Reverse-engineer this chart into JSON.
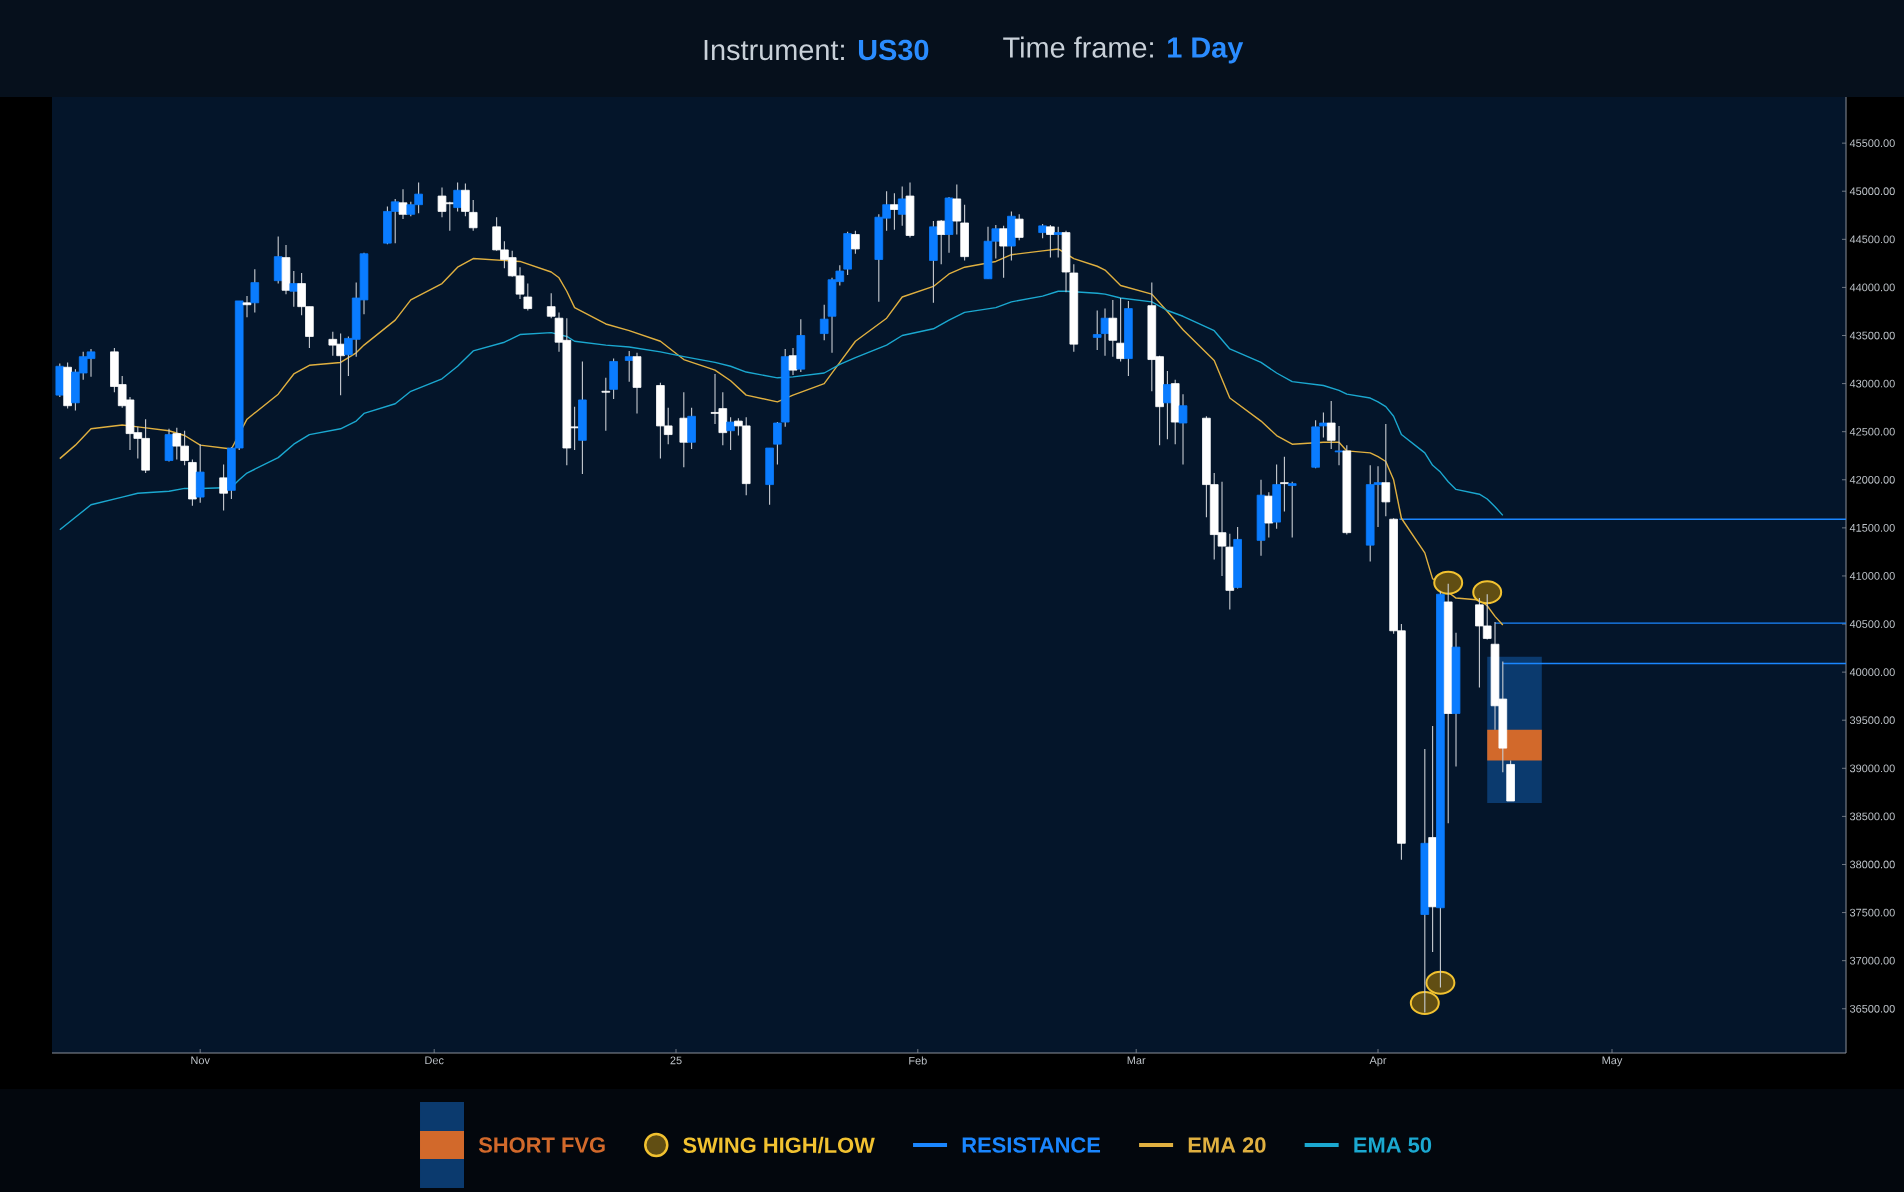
{
  "chart_data": {
    "type": "candlestick",
    "title": "Instrument: **US30**",
    "subtitle": "Time frame: **1 Day**",
    "xlim": [
      "2024-10-13",
      "2025-05-31"
    ],
    "xticks": [
      {
        "value": "2024-11-01",
        "label": "Nov"
      },
      {
        "value": "2024-12-01",
        "label": "Dec"
      },
      {
        "value": "2025-01-01",
        "label": "25"
      },
      {
        "value": "2025-02-01",
        "label": "Feb"
      },
      {
        "value": "2025-03-01",
        "label": "Mar"
      },
      {
        "value": "2025-04-01",
        "label": "Apr"
      },
      {
        "value": "2025-05-01",
        "label": "May"
      }
    ],
    "ylim": [
      36040,
      45980
    ],
    "yticks": [
      {
        "value": 36500,
        "label": "36500.00"
      },
      {
        "value": 37000,
        "label": "37000.00"
      },
      {
        "value": 37500,
        "label": "37500.00"
      },
      {
        "value": 38000,
        "label": "38000.00"
      },
      {
        "value": 38500,
        "label": "38500.00"
      },
      {
        "value": 39000,
        "label": "39000.00"
      },
      {
        "value": 39500,
        "label": "39500.00"
      },
      {
        "value": 40000,
        "label": "40000.00"
      },
      {
        "value": 40500,
        "label": "40500.00"
      },
      {
        "value": 41000,
        "label": "41000.00"
      },
      {
        "value": 41500,
        "label": "41500.00"
      },
      {
        "value": 42000,
        "label": "42000.00"
      },
      {
        "value": 42500,
        "label": "42500.00"
      },
      {
        "value": 43000,
        "label": "43000.00"
      },
      {
        "value": 43500,
        "label": "43500.00"
      },
      {
        "value": 44000,
        "label": "44000.00"
      },
      {
        "value": 44500,
        "label": "44500.00"
      },
      {
        "value": 45000,
        "label": "45000.00"
      },
      {
        "value": 45500,
        "label": "45500.00"
      }
    ],
    "legend": "bottom",
    "series": [
      {
        "type": "bar",
        "color": "#0b3a6e",
        "x": [
          "2025-04-18T12:00"
        ],
        "base": [
          38640
        ],
        "values": [
          1520
        ]
      },
      {
        "type": "bar",
        "name": "SHORT FVG",
        "color": "#d2692b",
        "x": [
          "2025-04-18T12:00"
        ],
        "base": [
          39080
        ],
        "values": [
          320
        ]
      },
      {
        "type": "scatter",
        "name": "SWING HIGH/LOW",
        "color": "#f2c230",
        "marker": "circle",
        "x": [
          "2025-04-07",
          "2025-04-09",
          "2025-04-10",
          "2025-04-15"
        ],
        "values": [
          36560,
          36770,
          40930,
          40830
        ]
      },
      {
        "type": "line",
        "name": "RESISTANCE",
        "color": "#1a86ff",
        "x": [
          "2025-04-03T18:00",
          "2025-05-31"
        ],
        "values": [
          41590,
          41590
        ]
      },
      {
        "type": "line",
        "color": "#1a86ff",
        "x": [
          "2025-04-16",
          "2025-05-31"
        ],
        "values": [
          40510,
          40510
        ]
      },
      {
        "type": "line",
        "color": "#1a86ff",
        "x": [
          "2025-04-17",
          "2025-05-31"
        ],
        "values": [
          40090,
          40090
        ]
      },
      {
        "type": "line",
        "name": "EMA 20",
        "color": "#e0b040",
        "x": [
          "2024-10-14",
          "2024-10-16",
          "2024-10-18",
          "2024-10-22",
          "2024-10-24",
          "2024-10-28",
          "2024-10-30",
          "2024-11-01",
          "2024-11-05",
          "2024-11-06",
          "2024-11-07",
          "2024-11-11",
          "2024-11-13",
          "2024-11-15",
          "2024-11-19",
          "2024-11-21",
          "2024-11-22",
          "2024-11-26",
          "2024-11-28",
          "2024-12-02",
          "2024-12-04",
          "2024-12-06",
          "2024-12-10",
          "2024-12-12",
          "2024-12-16",
          "2024-12-17",
          "2024-12-18",
          "2024-12-19",
          "2024-12-23",
          "2024-12-26",
          "2024-12-30",
          "2025-01-02",
          "2025-01-06",
          "2025-01-08",
          "2025-01-10",
          "2025-01-14",
          "2025-01-16",
          "2025-01-20",
          "2025-01-22",
          "2025-01-24",
          "2025-01-28",
          "2025-01-30",
          "2025-02-03",
          "2025-02-05",
          "2025-02-07",
          "2025-02-11",
          "2025-02-13",
          "2025-02-17",
          "2025-02-19",
          "2025-02-20",
          "2025-02-21",
          "2025-02-24",
          "2025-02-25",
          "2025-02-27",
          "2025-03-03",
          "2025-03-05",
          "2025-03-07",
          "2025-03-11",
          "2025-03-13",
          "2025-03-17",
          "2025-03-19",
          "2025-03-21",
          "2025-03-25",
          "2025-03-27",
          "2025-03-28",
          "2025-03-31",
          "2025-04-01",
          "2025-04-02",
          "2025-04-03",
          "2025-04-04",
          "2025-04-07",
          "2025-04-08",
          "2025-04-09",
          "2025-04-10",
          "2025-04-11",
          "2025-04-14",
          "2025-04-15",
          "2025-04-16",
          "2025-04-17"
        ],
        "values": [
          42220,
          42360,
          42530,
          42570,
          42550,
          42510,
          42460,
          42360,
          42320,
          null,
          42630,
          42890,
          43100,
          43190,
          43220,
          43320,
          43400,
          43660,
          43870,
          44040,
          44210,
          44300,
          null,
          44270,
          44160,
          44100,
          43960,
          43790,
          43620,
          43550,
          43440,
          43250,
          43140,
          43030,
          42880,
          42810,
          42880,
          43000,
          43220,
          43440,
          43680,
          43900,
          44010,
          44140,
          44210,
          44270,
          44340,
          44380,
          44400,
          null,
          44300,
          44220,
          44180,
          44020,
          43930,
          43750,
          43560,
          43240,
          42850,
          42610,
          42460,
          42370,
          42390,
          42390,
          42300,
          42280,
          42240,
          42190,
          42000,
          41600,
          41240,
          40970,
          40940,
          40830,
          40770,
          40750,
          40690,
          40580,
          40490
        ]
      },
      {
        "type": "line",
        "name": "EMA 50",
        "color": "#1ba8d0",
        "x": [
          "2024-10-14",
          "2024-10-16",
          "2024-10-18",
          "2024-10-22",
          "2024-10-24",
          "2024-10-28",
          "2024-10-30",
          "2024-11-01",
          "2024-11-05",
          "2024-11-06",
          "2024-11-07",
          "2024-11-11",
          "2024-11-13",
          "2024-11-15",
          "2024-11-19",
          "2024-11-21",
          "2024-11-22",
          "2024-11-26",
          "2024-11-28",
          "2024-12-02",
          "2024-12-04",
          "2024-12-06",
          "2024-12-10",
          "2024-12-12",
          "2024-12-16",
          "2024-12-17",
          "2024-12-18",
          "2024-12-19",
          "2024-12-23",
          "2024-12-26",
          "2024-12-30",
          "2025-01-02",
          "2025-01-06",
          "2025-01-08",
          "2025-01-10",
          "2025-01-14",
          "2025-01-16",
          "2025-01-20",
          "2025-01-22",
          "2025-01-24",
          "2025-01-28",
          "2025-01-30",
          "2025-02-03",
          "2025-02-05",
          "2025-02-07",
          "2025-02-11",
          "2025-02-13",
          "2025-02-17",
          "2025-02-19",
          "2025-02-20",
          "2025-02-21",
          "2025-02-24",
          "2025-02-25",
          "2025-02-27",
          "2025-03-03",
          "2025-03-05",
          "2025-03-07",
          "2025-03-11",
          "2025-03-13",
          "2025-03-17",
          "2025-03-19",
          "2025-03-21",
          "2025-03-25",
          "2025-03-27",
          "2025-03-28",
          "2025-03-31",
          "2025-04-01",
          "2025-04-02",
          "2025-04-03",
          "2025-04-04",
          "2025-04-07",
          "2025-04-08",
          "2025-04-09",
          "2025-04-10",
          "2025-04-11",
          "2025-04-14",
          "2025-04-15",
          "2025-04-16",
          "2025-04-17"
        ],
        "values": [
          41480,
          41610,
          41740,
          41820,
          41860,
          41880,
          41910,
          41910,
          41920,
          42000,
          42070,
          42230,
          42370,
          42470,
          42530,
          42610,
          42690,
          42790,
          42920,
          43050,
          43180,
          43340,
          43430,
          43510,
          43530,
          null,
          43490,
          43440,
          43400,
          43380,
          43330,
          43280,
          43220,
          43180,
          43120,
          43060,
          43070,
          43110,
          43200,
          43270,
          43400,
          43500,
          43570,
          43660,
          43740,
          43790,
          43850,
          43910,
          43960,
          43960,
          null,
          43940,
          43930,
          43890,
          43850,
          43760,
          43700,
          43550,
          43360,
          43220,
          43110,
          43020,
          42980,
          42930,
          42890,
          42850,
          42810,
          42760,
          42660,
          42470,
          42280,
          42150,
          42080,
          41980,
          41900,
          41850,
          41800,
          41720,
          41630
        ]
      },
      {
        "x": [
          "2024-10-14",
          "2024-10-15",
          "2024-10-16",
          "2024-10-17",
          "2024-10-18",
          "2024-10-21",
          "2024-10-22",
          "2024-10-23",
          "2024-10-24",
          "2024-10-25",
          "2024-10-28",
          "2024-10-29",
          "2024-10-30",
          "2024-10-31",
          "2024-11-01",
          "2024-11-04",
          "2024-11-05",
          "2024-11-06",
          "2024-11-07",
          "2024-11-08",
          "2024-11-11",
          "2024-11-12",
          "2024-11-13",
          "2024-11-14",
          "2024-11-15",
          "2024-11-18",
          "2024-11-19",
          "2024-11-20",
          "2024-11-21",
          "2024-11-22",
          "2024-11-25",
          "2024-11-26",
          "2024-11-27",
          "2024-11-28",
          "2024-11-29",
          "2024-12-02",
          "2024-12-03",
          "2024-12-04",
          "2024-12-05",
          "2024-12-06",
          "2024-12-09",
          "2024-12-10",
          "2024-12-11",
          "2024-12-12",
          "2024-12-13",
          "2024-12-16",
          "2024-12-17",
          "2024-12-18",
          "2024-12-19",
          "2024-12-20",
          "2024-12-23",
          "2024-12-24",
          "2024-12-26",
          "2024-12-27",
          "2024-12-30",
          "2024-12-31",
          "2025-01-02",
          "2025-01-03",
          "2025-01-06",
          "2025-01-07",
          "2025-01-08",
          "2025-01-09",
          "2025-01-10",
          "2025-01-13",
          "2025-01-14",
          "2025-01-15",
          "2025-01-16",
          "2025-01-17",
          "2025-01-20",
          "2025-01-21",
          "2025-01-22",
          "2025-01-23",
          "2025-01-24",
          "2025-01-27",
          "2025-01-28",
          "2025-01-29",
          "2025-01-30",
          "2025-01-31",
          "2025-02-03",
          "2025-02-04",
          "2025-02-05",
          "2025-02-06",
          "2025-02-07",
          "2025-02-10",
          "2025-02-11",
          "2025-02-12",
          "2025-02-13",
          "2025-02-14",
          "2025-02-17",
          "2025-02-18",
          "2025-02-19",
          "2025-02-20",
          "2025-02-21",
          "2025-02-24",
          "2025-02-25",
          "2025-02-26",
          "2025-02-27",
          "2025-02-28",
          "2025-03-03",
          "2025-03-04",
          "2025-03-05",
          "2025-03-06",
          "2025-03-07",
          "2025-03-10",
          "2025-03-11",
          "2025-03-12",
          "2025-03-13",
          "2025-03-14",
          "2025-03-17",
          "2025-03-18",
          "2025-03-19",
          "2025-03-20",
          "2025-03-21",
          "2025-03-24",
          "2025-03-25",
          "2025-03-26",
          "2025-03-27",
          "2025-03-28",
          "2025-03-31",
          "2025-04-01",
          "2025-04-02",
          "2025-04-03",
          "2025-04-04",
          "2025-04-07",
          "2025-04-08",
          "2025-04-09",
          "2025-04-10",
          "2025-04-11",
          "2025-04-14",
          "2025-04-15",
          "2025-04-16",
          "2025-04-17",
          "2025-04-18"
        ],
        "ohlc": [
          [
            42880,
            43210,
            42860,
            43180
          ],
          [
            43170,
            43220,
            42740,
            42770
          ],
          [
            42800,
            43150,
            42720,
            43120
          ],
          [
            43110,
            43330,
            43040,
            43280
          ],
          [
            43260,
            43360,
            43070,
            43330
          ],
          [
            43330,
            43370,
            42910,
            42970
          ],
          [
            42990,
            43080,
            42750,
            42770
          ],
          [
            42830,
            42860,
            42310,
            42480
          ],
          [
            42490,
            42550,
            42220,
            42430
          ],
          [
            42430,
            42630,
            42070,
            42100
          ],
          [
            42200,
            42530,
            42190,
            42470
          ],
          [
            42480,
            42540,
            42210,
            42350
          ],
          [
            42350,
            42510,
            42150,
            42200
          ],
          [
            42180,
            42210,
            41730,
            41800
          ],
          [
            41820,
            42370,
            41760,
            42080
          ],
          [
            42020,
            42160,
            41680,
            41860
          ],
          [
            41890,
            42340,
            41800,
            42330
          ],
          [
            42330,
            43860,
            42310,
            43860
          ],
          [
            43840,
            43910,
            43690,
            43820
          ],
          [
            43840,
            44190,
            43740,
            44050
          ],
          [
            44070,
            44530,
            44040,
            44320
          ],
          [
            44310,
            44440,
            43930,
            43970
          ],
          [
            43960,
            44170,
            43800,
            44040
          ],
          [
            44040,
            44150,
            43710,
            43800
          ],
          [
            43800,
            43800,
            43370,
            43490
          ],
          [
            43460,
            43540,
            43290,
            43400
          ],
          [
            43410,
            43520,
            42880,
            43290
          ],
          [
            43300,
            43490,
            43080,
            43470
          ],
          [
            43460,
            44050,
            43280,
            43890
          ],
          [
            43870,
            44360,
            43720,
            44350
          ],
          [
            44460,
            44840,
            44450,
            44790
          ],
          [
            44790,
            44920,
            44460,
            44890
          ],
          [
            44880,
            45020,
            44710,
            44760
          ],
          [
            44760,
            44890,
            44740,
            44860
          ],
          [
            44860,
            45090,
            44770,
            44970
          ],
          [
            44950,
            45040,
            44730,
            44790
          ],
          [
            44880,
            44890,
            44590,
            44870
          ],
          [
            44830,
            45090,
            44790,
            45010
          ],
          [
            45010,
            45080,
            44740,
            44790
          ],
          [
            44780,
            44910,
            44590,
            44620
          ],
          [
            44630,
            44730,
            44380,
            44390
          ],
          [
            44390,
            44480,
            44200,
            44290
          ],
          [
            44310,
            44380,
            44110,
            44120
          ],
          [
            44120,
            44210,
            43880,
            43930
          ],
          [
            43900,
            44040,
            43760,
            43780
          ],
          [
            43800,
            43940,
            43680,
            43700
          ],
          [
            43680,
            43740,
            43330,
            43430
          ],
          [
            43450,
            43680,
            42150,
            42330
          ],
          [
            42550,
            42760,
            42310,
            42540
          ],
          [
            42410,
            43230,
            42060,
            42830
          ],
          [
            42920,
            43060,
            42510,
            42910
          ],
          [
            42940,
            43260,
            42840,
            43230
          ],
          [
            43240,
            43340,
            43020,
            43280
          ],
          [
            43280,
            43320,
            42690,
            42960
          ],
          [
            42980,
            43010,
            42220,
            42560
          ],
          [
            42560,
            42750,
            42370,
            42470
          ],
          [
            42640,
            42910,
            42130,
            42390
          ],
          [
            42390,
            42750,
            42320,
            42660
          ],
          [
            42700,
            43100,
            42580,
            42690
          ],
          [
            42740,
            42910,
            42360,
            42490
          ],
          [
            42510,
            42650,
            42310,
            42600
          ],
          [
            42610,
            42640,
            42460,
            42560
          ],
          [
            42560,
            42650,
            41840,
            41960
          ],
          [
            41950,
            42330,
            41740,
            42330
          ],
          [
            42370,
            42600,
            42160,
            42590
          ],
          [
            42600,
            43360,
            42550,
            43280
          ],
          [
            43290,
            43370,
            43090,
            43140
          ],
          [
            43150,
            43670,
            43120,
            43500
          ],
          [
            43520,
            43820,
            43450,
            43670
          ],
          [
            43700,
            44100,
            43320,
            44080
          ],
          [
            44060,
            44230,
            44020,
            44170
          ],
          [
            44190,
            44580,
            44130,
            44560
          ],
          [
            44550,
            44590,
            44350,
            44400
          ],
          [
            44290,
            44760,
            43850,
            44730
          ],
          [
            44720,
            45000,
            44590,
            44860
          ],
          [
            44860,
            44980,
            44600,
            44810
          ],
          [
            44760,
            45050,
            44640,
            44920
          ],
          [
            44950,
            45090,
            44520,
            44540
          ],
          [
            44280,
            44690,
            43840,
            44630
          ],
          [
            44690,
            44700,
            44240,
            44550
          ],
          [
            44550,
            44940,
            44360,
            44930
          ],
          [
            44920,
            45070,
            44550,
            44690
          ],
          [
            44670,
            44860,
            44280,
            44320
          ],
          [
            44090,
            44630,
            44090,
            44480
          ],
          [
            44480,
            44650,
            44300,
            44610
          ],
          [
            44610,
            44640,
            44100,
            44430
          ],
          [
            44430,
            44790,
            44280,
            44740
          ],
          [
            44710,
            44760,
            44490,
            44520
          ],
          [
            44570,
            44660,
            44510,
            44640
          ],
          [
            44630,
            44650,
            44310,
            44550
          ],
          [
            44550,
            44630,
            44310,
            44570
          ],
          [
            44570,
            44590,
            43950,
            44160
          ],
          [
            44150,
            44240,
            43330,
            43410
          ],
          [
            43480,
            43760,
            43350,
            43510
          ],
          [
            43520,
            43780,
            43290,
            43680
          ],
          [
            43680,
            43870,
            43280,
            43450
          ],
          [
            43420,
            43890,
            43230,
            43260
          ],
          [
            43260,
            43860,
            43080,
            43780
          ],
          [
            43810,
            44050,
            42920,
            43250
          ],
          [
            43280,
            43290,
            42360,
            42760
          ],
          [
            42800,
            43130,
            42420,
            42990
          ],
          [
            43000,
            43040,
            42370,
            42600
          ],
          [
            42590,
            42890,
            42160,
            42770
          ],
          [
            42640,
            42660,
            41610,
            41950
          ],
          [
            41950,
            42070,
            41170,
            41430
          ],
          [
            41450,
            41980,
            41000,
            41310
          ],
          [
            41300,
            41440,
            40650,
            40850
          ],
          [
            40880,
            41510,
            40870,
            41380
          ],
          [
            41370,
            42000,
            41210,
            41840
          ],
          [
            41830,
            41870,
            41400,
            41550
          ],
          [
            41560,
            42160,
            41490,
            41950
          ],
          [
            41970,
            42240,
            41670,
            41960
          ],
          [
            41940,
            41980,
            41400,
            41960
          ],
          [
            42130,
            42620,
            42120,
            42550
          ],
          [
            42560,
            42700,
            42440,
            42590
          ],
          [
            42590,
            42820,
            42320,
            42410
          ],
          [
            42290,
            42560,
            42150,
            42300
          ],
          [
            42300,
            42360,
            41430,
            41450
          ],
          [
            41320,
            42150,
            41150,
            41950
          ],
          [
            41950,
            42140,
            41510,
            41970
          ],
          [
            41970,
            42580,
            41620,
            41770
          ],
          [
            41590,
            41600,
            40400,
            40430
          ],
          [
            40430,
            40500,
            38050,
            38220
          ],
          [
            37480,
            39200,
            36460,
            38220
          ],
          [
            38280,
            39440,
            37090,
            37560
          ],
          [
            37550,
            40840,
            36720,
            40810
          ],
          [
            40730,
            40920,
            38430,
            39570
          ],
          [
            39570,
            40410,
            39020,
            40260
          ],
          [
            40700,
            40770,
            39840,
            40480
          ],
          [
            40480,
            40810,
            40340,
            40350
          ],
          [
            40290,
            40520,
            39400,
            39650
          ],
          [
            39720,
            40110,
            38960,
            39210
          ],
          [
            39040,
            39080,
            38660,
            38660
          ]
        ],
        "colors": [
          "#0a7cff",
          "#ffffff",
          "#0a7cff",
          "#0a7cff",
          "#0a7cff",
          "#ffffff",
          "#ffffff",
          "#ffffff",
          "#ffffff",
          "#ffffff",
          "#0a7cff",
          "#ffffff",
          "#ffffff",
          "#ffffff",
          "#0a7cff",
          "#ffffff",
          "#0a7cff",
          "#0a7cff",
          "#ffffff",
          "#0a7cff",
          "#0a7cff",
          "#ffffff",
          "#0a7cff",
          "#ffffff",
          "#ffffff",
          "#ffffff",
          "#ffffff",
          "#0a7cff",
          "#0a7cff",
          "#0a7cff",
          "#0a7cff",
          "#0a7cff",
          "#ffffff",
          "#0a7cff",
          "#0a7cff",
          "#ffffff",
          "#ffffff",
          "#0a7cff",
          "#ffffff",
          "#ffffff",
          "#ffffff",
          "#ffffff",
          "#ffffff",
          "#ffffff",
          "#ffffff",
          "#ffffff",
          "#ffffff",
          "#ffffff",
          "#ffffff",
          "#0a7cff",
          "#ffffff",
          "#0a7cff",
          "#0a7cff",
          "#ffffff",
          "#ffffff",
          "#ffffff",
          "#ffffff",
          "#0a7cff",
          "#ffffff",
          "#ffffff",
          "#0a7cff",
          "#ffffff",
          "#ffffff",
          "#0a7cff",
          "#0a7cff",
          "#0a7cff",
          "#ffffff",
          "#0a7cff",
          "#0a7cff",
          "#0a7cff",
          "#0a7cff",
          "#0a7cff",
          "#ffffff",
          "#0a7cff",
          "#0a7cff",
          "#ffffff",
          "#0a7cff",
          "#ffffff",
          "#0a7cff",
          "#ffffff",
          "#0a7cff",
          "#ffffff",
          "#ffffff",
          "#0a7cff",
          "#0a7cff",
          "#ffffff",
          "#0a7cff",
          "#ffffff",
          "#0a7cff",
          "#ffffff",
          "#0a7cff",
          "#ffffff",
          "#ffffff",
          "#0a7cff",
          "#0a7cff",
          "#ffffff",
          "#ffffff",
          "#0a7cff",
          "#ffffff",
          "#ffffff",
          "#0a7cff",
          "#ffffff",
          "#0a7cff",
          "#ffffff",
          "#ffffff",
          "#ffffff",
          "#ffffff",
          "#0a7cff",
          "#0a7cff",
          "#ffffff",
          "#0a7cff",
          "#ffffff",
          "#0a7cff",
          "#0a7cff",
          "#0a7cff",
          "#ffffff",
          "#0a7cff",
          "#ffffff",
          "#0a7cff",
          "#0a7cff",
          "#ffffff",
          "#ffffff",
          "#ffffff",
          "#0a7cff",
          "#ffffff",
          "#0a7cff",
          "#ffffff",
          "#0a7cff",
          "#ffffff",
          "#ffffff",
          "#ffffff",
          "#ffffff",
          "#ffffff"
        ]
      }
    ]
  }
}
